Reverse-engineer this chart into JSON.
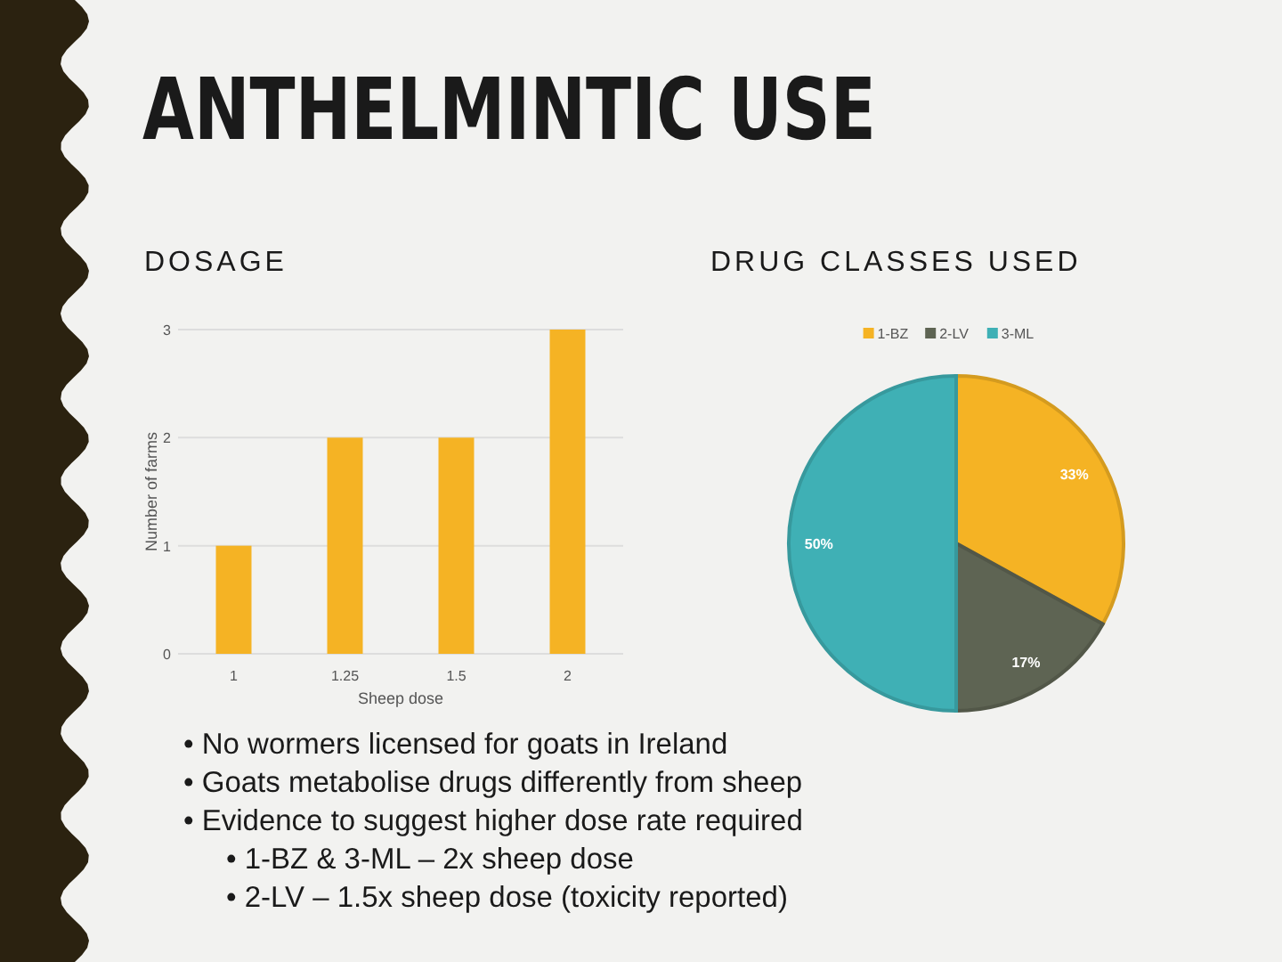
{
  "chart_data": [
    {
      "type": "bar",
      "title": "DOSAGE",
      "categories": [
        "1",
        "1.25",
        "1.5",
        "2"
      ],
      "values": [
        1,
        2,
        2,
        3
      ],
      "color": "#f5b324",
      "ylim": [
        0,
        3
      ],
      "yticks": [
        0,
        1,
        2,
        3
      ],
      "grid": "y",
      "xlabel": "Sheep dose",
      "ylabel": "Number of farms",
      "annotations": [
        "ANTHELMINTIC USE",
        "• No wormers licensed for goats in Ireland",
        "• Goats metabolise drugs differently from sheep",
        "• Evidence to suggest higher dose rate required",
        "• 1-BZ & 3-ML – 2x sheep dose",
        "• 2-LV – 1.5x sheep dose (toxicity reported)"
      ]
    },
    {
      "type": "pie",
      "title": "DRUG CLASSES USED",
      "categories": [
        "1-BZ",
        "2-LV",
        "3-ML"
      ],
      "values": [
        33,
        17,
        50
      ],
      "colors": [
        "#f5b324",
        "#5e6453",
        "#3fb0b5"
      ],
      "value_labels": [
        "33%",
        "17%",
        "50%"
      ],
      "legend": "top"
    }
  ]
}
